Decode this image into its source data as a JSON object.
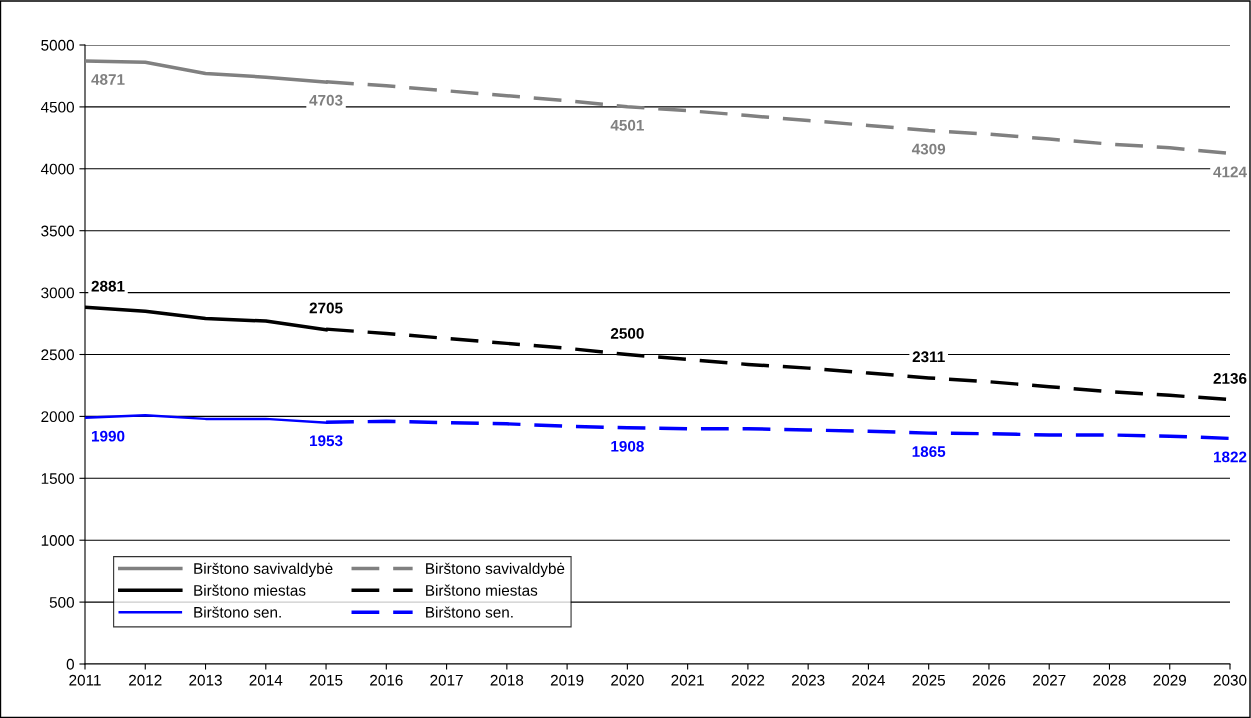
{
  "chart_data": {
    "type": "line",
    "x": [
      2011,
      2012,
      2013,
      2014,
      2015,
      2016,
      2017,
      2018,
      2019,
      2020,
      2021,
      2022,
      2023,
      2024,
      2025,
      2026,
      2027,
      2028,
      2029,
      2030
    ],
    "series": [
      {
        "name": "Birštono savivaldybė",
        "color": "#808080",
        "line_style": "solid",
        "values": [
          4871,
          4860,
          4770,
          4740,
          4700,
          null,
          null,
          null,
          null,
          null,
          null,
          null,
          null,
          null,
          null,
          null,
          null,
          null,
          null,
          null
        ],
        "value_labels": [
          "4871",
          null,
          null,
          null,
          null,
          null,
          null,
          null,
          null,
          null,
          null,
          null,
          null,
          null,
          null,
          null,
          null,
          null,
          null,
          null
        ]
      },
      {
        "name": "Birštono miestas",
        "color": "#000000",
        "line_style": "solid",
        "values": [
          2881,
          2850,
          2790,
          2770,
          2700,
          null,
          null,
          null,
          null,
          null,
          null,
          null,
          null,
          null,
          null,
          null,
          null,
          null,
          null,
          null
        ],
        "value_labels": [
          "2881",
          null,
          null,
          null,
          null,
          null,
          null,
          null,
          null,
          null,
          null,
          null,
          null,
          null,
          null,
          null,
          null,
          null,
          null,
          null
        ]
      },
      {
        "name": "Birštono sen.",
        "color": "#0000ff",
        "line_style": "solid",
        "values": [
          1990,
          2010,
          1980,
          1980,
          1950,
          null,
          null,
          null,
          null,
          null,
          null,
          null,
          null,
          null,
          null,
          null,
          null,
          null,
          null,
          null
        ],
        "value_labels": [
          "1990",
          null,
          null,
          null,
          null,
          null,
          null,
          null,
          null,
          null,
          null,
          null,
          null,
          null,
          null,
          null,
          null,
          null,
          null,
          null
        ]
      },
      {
        "name": "Birštono savivaldybė",
        "color": "#808080",
        "line_style": "dashed",
        "values": [
          null,
          null,
          null,
          null,
          4703,
          4670,
          4630,
          4590,
          4550,
          4501,
          4470,
          4430,
          4390,
          4350,
          4309,
          4280,
          4240,
          4200,
          4170,
          4124
        ],
        "value_labels": [
          null,
          null,
          null,
          null,
          "4703",
          null,
          null,
          null,
          null,
          "4501",
          null,
          null,
          null,
          null,
          "4309",
          null,
          null,
          null,
          null,
          "4124"
        ]
      },
      {
        "name": "Birštono miestas",
        "color": "#000000",
        "line_style": "dashed",
        "values": [
          null,
          null,
          null,
          null,
          2705,
          2670,
          2630,
          2590,
          2550,
          2500,
          2460,
          2420,
          2390,
          2350,
          2311,
          2280,
          2240,
          2200,
          2170,
          2136
        ],
        "value_labels": [
          null,
          null,
          null,
          null,
          "2705",
          null,
          null,
          null,
          null,
          "2500",
          null,
          null,
          null,
          null,
          "2311",
          null,
          null,
          null,
          null,
          "2136"
        ]
      },
      {
        "name": "Birštono sen.",
        "color": "#0000ff",
        "line_style": "dashed",
        "values": [
          null,
          null,
          null,
          null,
          1953,
          1960,
          1950,
          1940,
          1920,
          1908,
          1900,
          1900,
          1890,
          1880,
          1865,
          1860,
          1850,
          1850,
          1840,
          1822
        ],
        "value_labels": [
          null,
          null,
          null,
          null,
          "1953",
          null,
          null,
          null,
          null,
          "1908",
          null,
          null,
          null,
          null,
          "1865",
          null,
          null,
          null,
          null,
          "1822"
        ]
      }
    ],
    "xlim": [
      2011,
      2030
    ],
    "xticks": [
      2011,
      2012,
      2013,
      2014,
      2015,
      2016,
      2017,
      2018,
      2019,
      2020,
      2021,
      2022,
      2023,
      2024,
      2025,
      2026,
      2027,
      2028,
      2029,
      2030
    ],
    "ylim": [
      0,
      5000
    ],
    "yticks": [
      0,
      500,
      1000,
      1500,
      2000,
      2500,
      3000,
      3500,
      4000,
      4500,
      5000
    ],
    "grid": "y",
    "legend": "bottom left",
    "marker": "none"
  }
}
